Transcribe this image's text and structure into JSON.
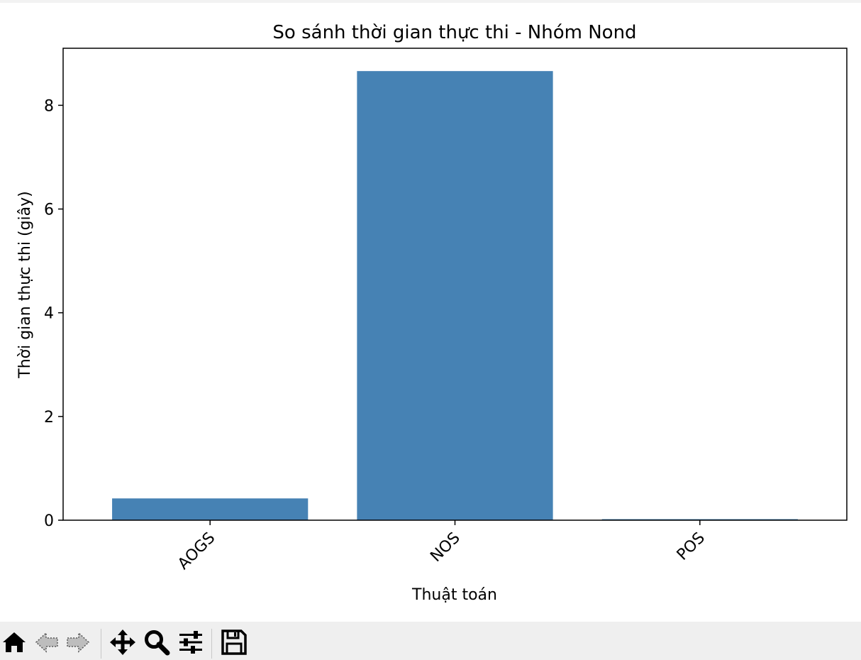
{
  "chart_data": {
    "type": "bar",
    "title": "So sánh thời gian thực thi - Nhóm Nond",
    "xlabel": "Thuật toán",
    "ylabel": "Thời gian thực thi (giây)",
    "categories": [
      "AOGS",
      "NOS",
      "POS"
    ],
    "values": [
      0.42,
      8.66,
      0.02
    ],
    "ylim": [
      0,
      9.1
    ],
    "yticks": [
      0,
      2,
      4,
      6,
      8
    ],
    "bar_color": "#4682b4",
    "grid": false,
    "x_tick_rotation": 45
  },
  "toolbar": {
    "items": [
      {
        "icon": "home-icon",
        "name": "Home"
      },
      {
        "icon": "back-arrow-icon",
        "name": "Back"
      },
      {
        "icon": "forward-arrow-icon",
        "name": "Forward"
      },
      {
        "icon": "pan-icon",
        "name": "Pan"
      },
      {
        "icon": "zoom-icon",
        "name": "Zoom"
      },
      {
        "icon": "configure-subplots-icon",
        "name": "Configure subplots"
      },
      {
        "icon": "save-icon",
        "name": "Save"
      }
    ]
  }
}
